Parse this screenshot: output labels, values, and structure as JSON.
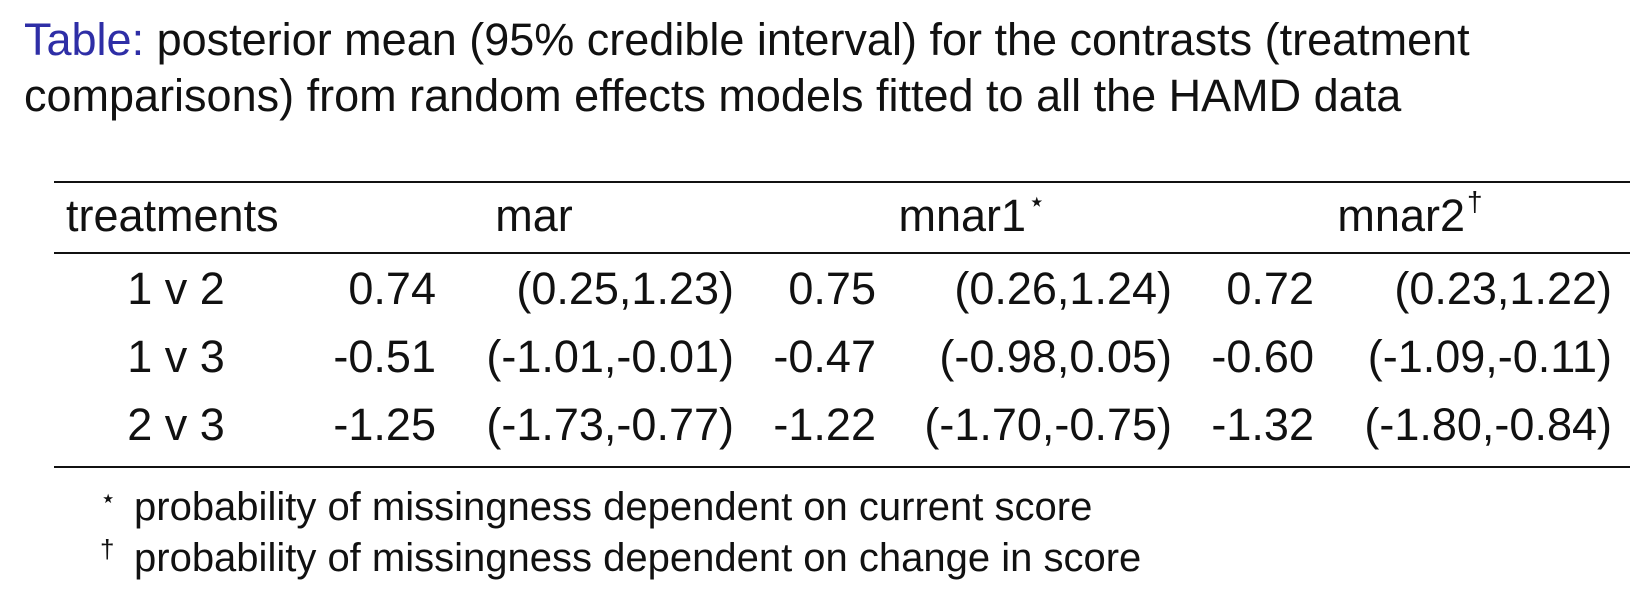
{
  "caption": {
    "lead": "Table:",
    "text": " posterior mean (95% credible interval) for the contrasts (treatment comparisons) from random effects models fitted to all the HAMD data"
  },
  "table": {
    "headers": {
      "treatments": "treatments",
      "mar": "mar",
      "mnar1": "mnar1",
      "mnar1_mark": "⋆",
      "mnar2": "mnar2",
      "mnar2_mark": "†"
    },
    "rows": [
      {
        "treatments": "1 v 2",
        "mar_mean": "0.74",
        "mar_ci": "(0.25,1.23)",
        "mnar1_mean": "0.75",
        "mnar1_ci": "(0.26,1.24)",
        "mnar2_mean": "0.72",
        "mnar2_ci": "(0.23,1.22)"
      },
      {
        "treatments": "1 v 3",
        "mar_mean": "-0.51",
        "mar_ci": "(-1.01,-0.01)",
        "mnar1_mean": "-0.47",
        "mnar1_ci": "(-0.98,0.05)",
        "mnar2_mean": "-0.60",
        "mnar2_ci": "(-1.09,-0.11)"
      },
      {
        "treatments": "2 v 3",
        "mar_mean": "-1.25",
        "mar_ci": "(-1.73,-0.77)",
        "mnar1_mean": "-1.22",
        "mnar1_ci": "(-1.70,-0.75)",
        "mnar2_mean": "-1.32",
        "mnar2_ci": "(-1.80,-0.84)"
      }
    ]
  },
  "footnotes": [
    {
      "symbol": "⋆",
      "text": "probability of missingness dependent on current score"
    },
    {
      "symbol": "†",
      "text": "probability of missingness dependent on change in score"
    }
  ]
}
